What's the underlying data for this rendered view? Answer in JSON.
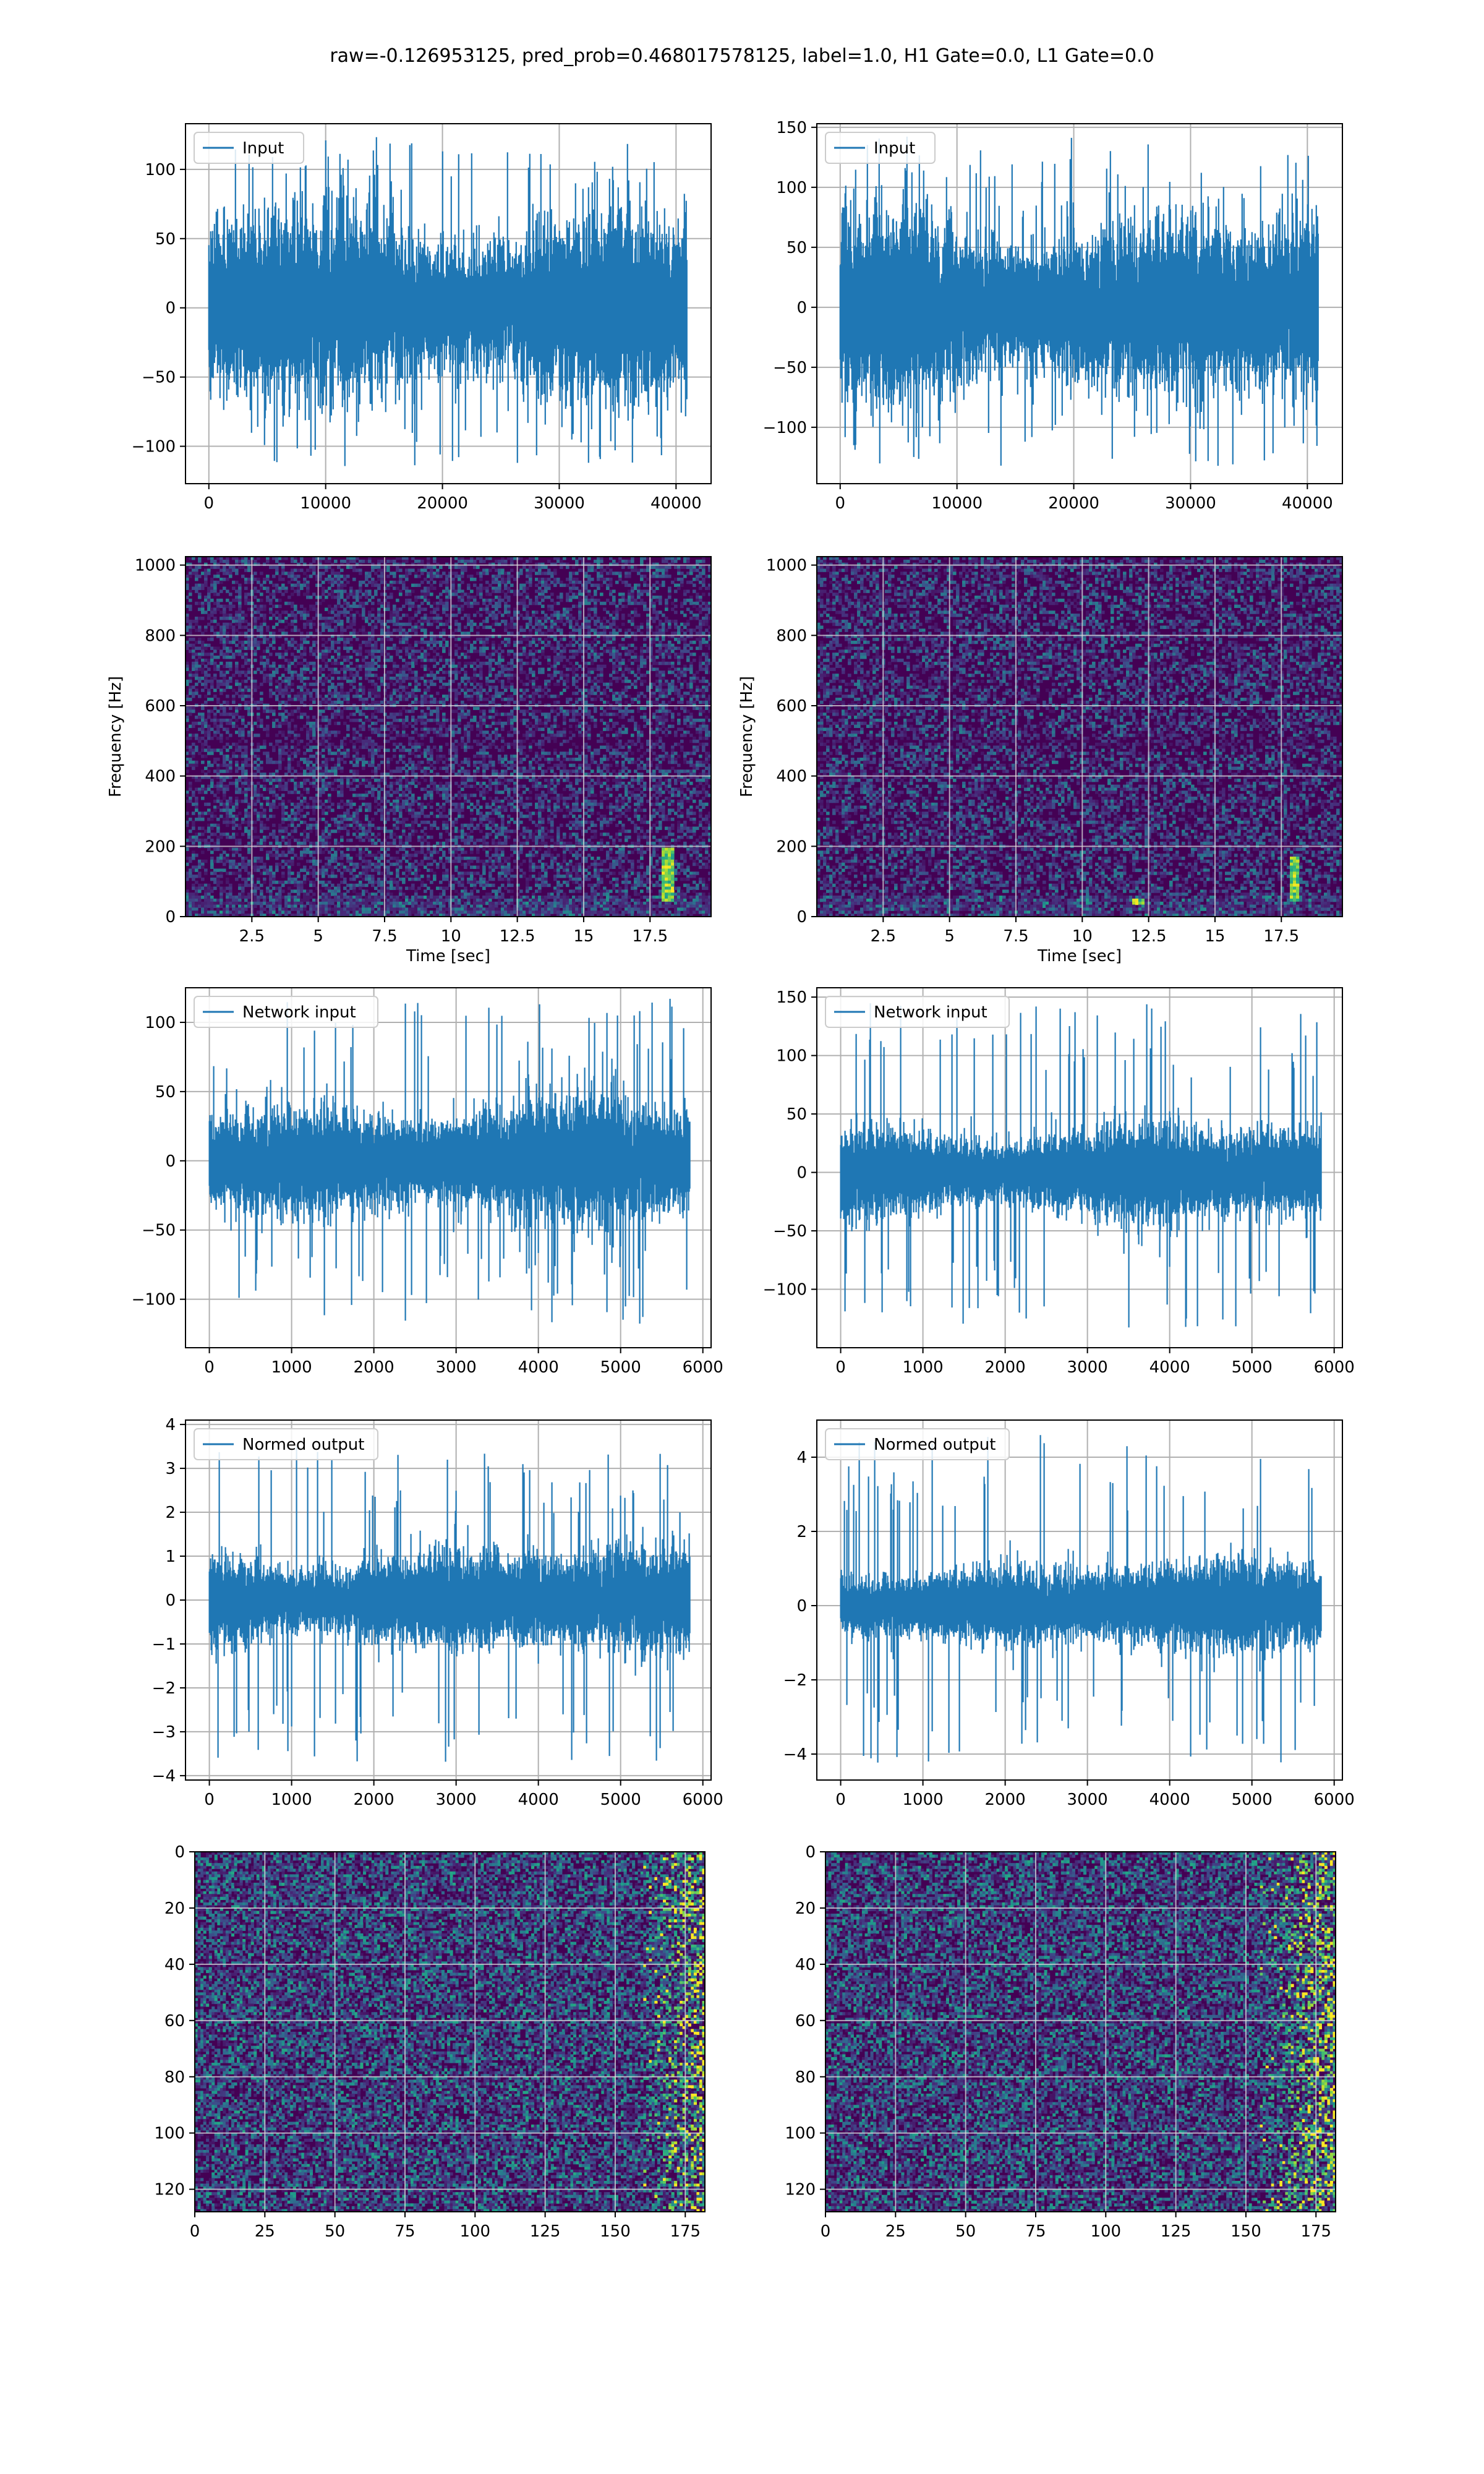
{
  "suptitle": "raw=-0.126953125, pred_prob=0.468017578125, label=1.0, H1 Gate=0.0, L1 Gate=0.0",
  "colors": {
    "line": "#1f77b4",
    "grid": "#b0b0b0",
    "viridis_dark": "#440154",
    "viridis_yellow": "#fde725"
  },
  "chart_data": [
    {
      "type": "line",
      "legend": "Input",
      "legend_placement": "upper-left",
      "grid": true,
      "xlim": [
        -2000,
        43000
      ],
      "ylim": [
        -127,
        133
      ],
      "xticks": [
        0,
        10000,
        20000,
        30000,
        40000
      ],
      "yticks": [
        -100,
        -50,
        0,
        50,
        100
      ],
      "signal": {
        "n": 40960,
        "envelope_p99": 72,
        "envelope_max": 124,
        "envelope_min": -115
      }
    },
    {
      "type": "line",
      "legend": "Input",
      "legend_placement": "upper-left",
      "grid": true,
      "xlim": [
        -2000,
        43000
      ],
      "ylim": [
        -147,
        153
      ],
      "xticks": [
        0,
        10000,
        20000,
        30000,
        40000
      ],
      "yticks": [
        -100,
        -50,
        0,
        50,
        100,
        150
      ],
      "signal": {
        "n": 40960,
        "envelope_p99": 80,
        "envelope_max": 145,
        "envelope_min": -133
      }
    },
    {
      "type": "heatmap",
      "grid": true,
      "colormap": "viridis",
      "xlabel": "Time [sec]",
      "ylabel": "Frequency [Hz]",
      "xlim": [
        0,
        19.8
      ],
      "ylim": [
        0,
        1024
      ],
      "xticks": [
        2.5,
        5.0,
        7.5,
        10.0,
        12.5,
        15.0,
        17.5
      ],
      "yticks": [
        0,
        200,
        400,
        600,
        800,
        1000
      ],
      "hot_spots": [
        {
          "t": 18.2,
          "f_from": 40,
          "f_to": 200
        }
      ]
    },
    {
      "type": "heatmap",
      "grid": true,
      "colormap": "viridis",
      "xlabel": "Time [sec]",
      "ylabel": "Frequency [Hz]",
      "xlim": [
        0,
        19.8
      ],
      "ylim": [
        0,
        1024
      ],
      "xticks": [
        2.5,
        5.0,
        7.5,
        10.0,
        12.5,
        15.0,
        17.5
      ],
      "yticks": [
        0,
        200,
        400,
        600,
        800,
        1000
      ],
      "hot_spots": [
        {
          "t": 18.0,
          "f_from": 40,
          "f_to": 170
        },
        {
          "t": 12.1,
          "f_from": 30,
          "f_to": 50
        }
      ]
    },
    {
      "type": "line",
      "legend": "Network input",
      "legend_placement": "upper-left",
      "grid": true,
      "xlim": [
        -290,
        6100
      ],
      "ylim": [
        -135,
        125
      ],
      "xticks": [
        0,
        1000,
        2000,
        3000,
        4000,
        5000,
        6000
      ],
      "yticks": [
        -100,
        -50,
        0,
        50,
        100
      ],
      "signal": {
        "n": 5850,
        "envelope_p99": 45,
        "envelope_max": 118,
        "envelope_min": -118
      }
    },
    {
      "type": "line",
      "legend": "Network input",
      "legend_placement": "upper-left",
      "grid": true,
      "xlim": [
        -290,
        6100
      ],
      "ylim": [
        -150,
        158
      ],
      "xticks": [
        0,
        1000,
        2000,
        3000,
        4000,
        5000,
        6000
      ],
      "yticks": [
        -100,
        -50,
        0,
        50,
        100,
        150
      ],
      "signal": {
        "n": 5850,
        "envelope_p99": 42,
        "envelope_max": 145,
        "envelope_min": -133
      }
    },
    {
      "type": "line",
      "legend": "Normed output",
      "legend_placement": "upper-left",
      "grid": true,
      "xlim": [
        -290,
        6100
      ],
      "ylim": [
        -4.1,
        4.1
      ],
      "xticks": [
        0,
        1000,
        2000,
        3000,
        4000,
        5000,
        6000
      ],
      "yticks": [
        -4,
        -3,
        -2,
        -1,
        0,
        1,
        2,
        3,
        4
      ],
      "signal": {
        "n": 5850,
        "envelope_p99": 1.2,
        "envelope_max": 3.6,
        "envelope_min": -3.7
      }
    },
    {
      "type": "line",
      "legend": "Normed output",
      "legend_placement": "upper-left",
      "grid": true,
      "xlim": [
        -290,
        6100
      ],
      "ylim": [
        -4.7,
        5.0
      ],
      "xticks": [
        0,
        1000,
        2000,
        3000,
        4000,
        5000,
        6000
      ],
      "yticks": [
        -4,
        -2,
        0,
        2,
        4
      ],
      "signal": {
        "n": 5850,
        "envelope_p99": 1.2,
        "envelope_max": 4.6,
        "envelope_min": -4.3
      }
    },
    {
      "type": "heatmap",
      "grid": true,
      "colormap": "viridis",
      "y_inverted": true,
      "xlim": [
        0,
        182
      ],
      "ylim": [
        128,
        0
      ],
      "xticks": [
        0,
        25,
        50,
        75,
        100,
        125,
        150,
        175
      ],
      "yticks": [
        0,
        20,
        40,
        60,
        80,
        100,
        120
      ],
      "columns": 182,
      "rows": 128,
      "hot_columns_from": 160
    },
    {
      "type": "heatmap",
      "grid": true,
      "colormap": "viridis",
      "y_inverted": true,
      "xlim": [
        0,
        182
      ],
      "ylim": [
        128,
        0
      ],
      "xticks": [
        0,
        25,
        50,
        75,
        100,
        125,
        150,
        175
      ],
      "yticks": [
        0,
        20,
        40,
        60,
        80,
        100,
        120
      ],
      "columns": 182,
      "rows": 128,
      "hot_columns_from": 155
    }
  ]
}
